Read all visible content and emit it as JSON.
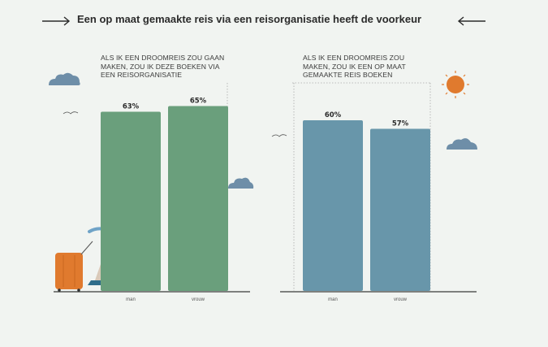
{
  "header": {
    "title": "Een op maat gemaakte reis via een reisorganisatie heeft de voorkeur"
  },
  "colors": {
    "green": "#6a9f7c",
    "blue": "#6896aa",
    "sun": "#e07a2e",
    "suitcase": "#e07a2e",
    "cloud": "#6e8ea8",
    "axis": "#3a3a3a"
  },
  "chart_data": [
    {
      "type": "bar",
      "title": "ALS IK EEN DROOMREIS ZOU GAAN MAKEN, ZOU IK DEZE BOEKEN VIA EEN REISORGANISATIE",
      "categories": [
        "man",
        "vrouw"
      ],
      "values": [
        63,
        65
      ],
      "labels": [
        "63%",
        "65%"
      ],
      "ylim": [
        0,
        100
      ],
      "color": "#6a9f7c"
    },
    {
      "type": "bar",
      "title": "ALS IK EEN DROOMREIS ZOU MAKEN, ZOU IK EEN OP MAAT GEMAAKTE REIS BOEKEN",
      "categories": [
        "man",
        "vrouw"
      ],
      "values": [
        60,
        57
      ],
      "labels": [
        "60%",
        "57%"
      ],
      "ylim": [
        0,
        100
      ],
      "color": "#6896aa"
    }
  ]
}
